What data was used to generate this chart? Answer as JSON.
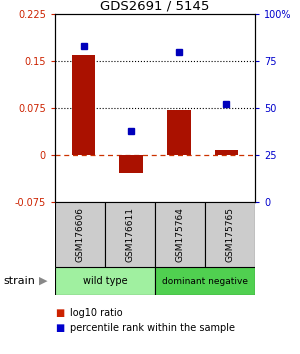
{
  "title": "GDS2691 / 5145",
  "samples": [
    "GSM176606",
    "GSM176611",
    "GSM175764",
    "GSM175765"
  ],
  "log10_ratio": [
    0.16,
    -0.028,
    0.072,
    0.008
  ],
  "percentile_rank": [
    83,
    38,
    80,
    52
  ],
  "groups": [
    {
      "label": "wild type",
      "color": "#a0f0a0",
      "span": [
        0,
        2
      ]
    },
    {
      "label": "dominant negative",
      "color": "#50d050",
      "span": [
        2,
        4
      ]
    }
  ],
  "ylim_left": [
    -0.075,
    0.225
  ],
  "ylim_right": [
    0,
    100
  ],
  "yticks_left": [
    -0.075,
    0,
    0.075,
    0.15,
    0.225
  ],
  "yticks_right": [
    0,
    25,
    50,
    75,
    100
  ],
  "ytick_labels_left": [
    "-0.075",
    "0",
    "0.075",
    "0.15",
    "0.225"
  ],
  "ytick_labels_right": [
    "0",
    "25",
    "50",
    "75",
    "100%"
  ],
  "hlines_dotted": [
    0.075,
    0.15
  ],
  "hline_dash": 0.0,
  "bar_color": "#aa1100",
  "dot_color": "#0000bb",
  "bar_width": 0.5,
  "left_label_color": "#cc2200",
  "right_label_color": "#0000cc",
  "sample_box_color": "#cccccc",
  "strain_label": "strain",
  "legend_ratio_label": "log10 ratio",
  "legend_rank_label": "percentile rank within the sample",
  "legend_ratio_color": "#cc2200",
  "legend_rank_color": "#0000cc"
}
